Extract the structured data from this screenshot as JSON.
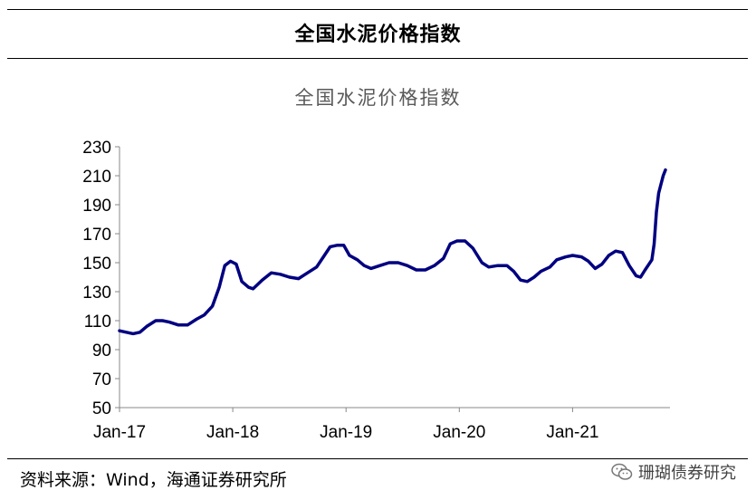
{
  "header": {
    "title": "全国水泥价格指数"
  },
  "footer": {
    "source": "资料来源：Wind，海通证券研究所",
    "watermark": "珊瑚债券研究"
  },
  "chart_data": {
    "type": "line",
    "title": "全国水泥价格指数",
    "xlabel": "",
    "ylabel": "",
    "ylim": [
      50,
      230
    ],
    "yticks": [
      50,
      70,
      90,
      110,
      130,
      150,
      170,
      190,
      210,
      230
    ],
    "xticks": [
      {
        "label": "Jan-17",
        "t": 2017.0
      },
      {
        "label": "Jan-18",
        "t": 2018.0
      },
      {
        "label": "Jan-19",
        "t": 2019.0
      },
      {
        "label": "Jan-20",
        "t": 2020.0
      },
      {
        "label": "Jan-21",
        "t": 2021.0
      }
    ],
    "grid": false,
    "line_color": "#000080",
    "series": [
      {
        "points": [
          [
            2017.0,
            103
          ],
          [
            2017.06,
            102
          ],
          [
            2017.12,
            101
          ],
          [
            2017.18,
            102
          ],
          [
            2017.24,
            106
          ],
          [
            2017.32,
            110
          ],
          [
            2017.38,
            110
          ],
          [
            2017.44,
            109
          ],
          [
            2017.52,
            107
          ],
          [
            2017.6,
            107
          ],
          [
            2017.68,
            111
          ],
          [
            2017.75,
            114
          ],
          [
            2017.82,
            120
          ],
          [
            2017.88,
            133
          ],
          [
            2017.93,
            148
          ],
          [
            2017.98,
            151
          ],
          [
            2018.03,
            149
          ],
          [
            2018.08,
            137
          ],
          [
            2018.14,
            133
          ],
          [
            2018.18,
            132
          ],
          [
            2018.26,
            138
          ],
          [
            2018.34,
            143
          ],
          [
            2018.42,
            142
          ],
          [
            2018.5,
            140
          ],
          [
            2018.58,
            139
          ],
          [
            2018.66,
            143
          ],
          [
            2018.74,
            147
          ],
          [
            2018.8,
            154
          ],
          [
            2018.86,
            161
          ],
          [
            2018.92,
            162
          ],
          [
            2018.98,
            162
          ],
          [
            2019.03,
            155
          ],
          [
            2019.1,
            152
          ],
          [
            2019.16,
            148
          ],
          [
            2019.22,
            146
          ],
          [
            2019.3,
            148
          ],
          [
            2019.38,
            150
          ],
          [
            2019.46,
            150
          ],
          [
            2019.54,
            148
          ],
          [
            2019.62,
            145
          ],
          [
            2019.7,
            145
          ],
          [
            2019.78,
            148
          ],
          [
            2019.86,
            153
          ],
          [
            2019.92,
            163
          ],
          [
            2019.98,
            165
          ],
          [
            2020.05,
            165
          ],
          [
            2020.12,
            160
          ],
          [
            2020.2,
            150
          ],
          [
            2020.26,
            147
          ],
          [
            2020.34,
            148
          ],
          [
            2020.42,
            148
          ],
          [
            2020.48,
            144
          ],
          [
            2020.54,
            138
          ],
          [
            2020.6,
            137
          ],
          [
            2020.66,
            140
          ],
          [
            2020.72,
            144
          ],
          [
            2020.8,
            147
          ],
          [
            2020.86,
            152
          ],
          [
            2020.94,
            154
          ],
          [
            2021.0,
            155
          ],
          [
            2021.08,
            154
          ],
          [
            2021.14,
            151
          ],
          [
            2021.2,
            146
          ],
          [
            2021.26,
            149
          ],
          [
            2021.32,
            155
          ],
          [
            2021.38,
            158
          ],
          [
            2021.44,
            157
          ],
          [
            2021.5,
            148
          ],
          [
            2021.56,
            141
          ],
          [
            2021.6,
            140
          ],
          [
            2021.64,
            145
          ],
          [
            2021.7,
            152
          ],
          [
            2021.72,
            163
          ],
          [
            2021.74,
            185
          ],
          [
            2021.76,
            198
          ],
          [
            2021.78,
            204
          ],
          [
            2021.8,
            210
          ],
          [
            2021.82,
            214
          ]
        ]
      }
    ]
  }
}
